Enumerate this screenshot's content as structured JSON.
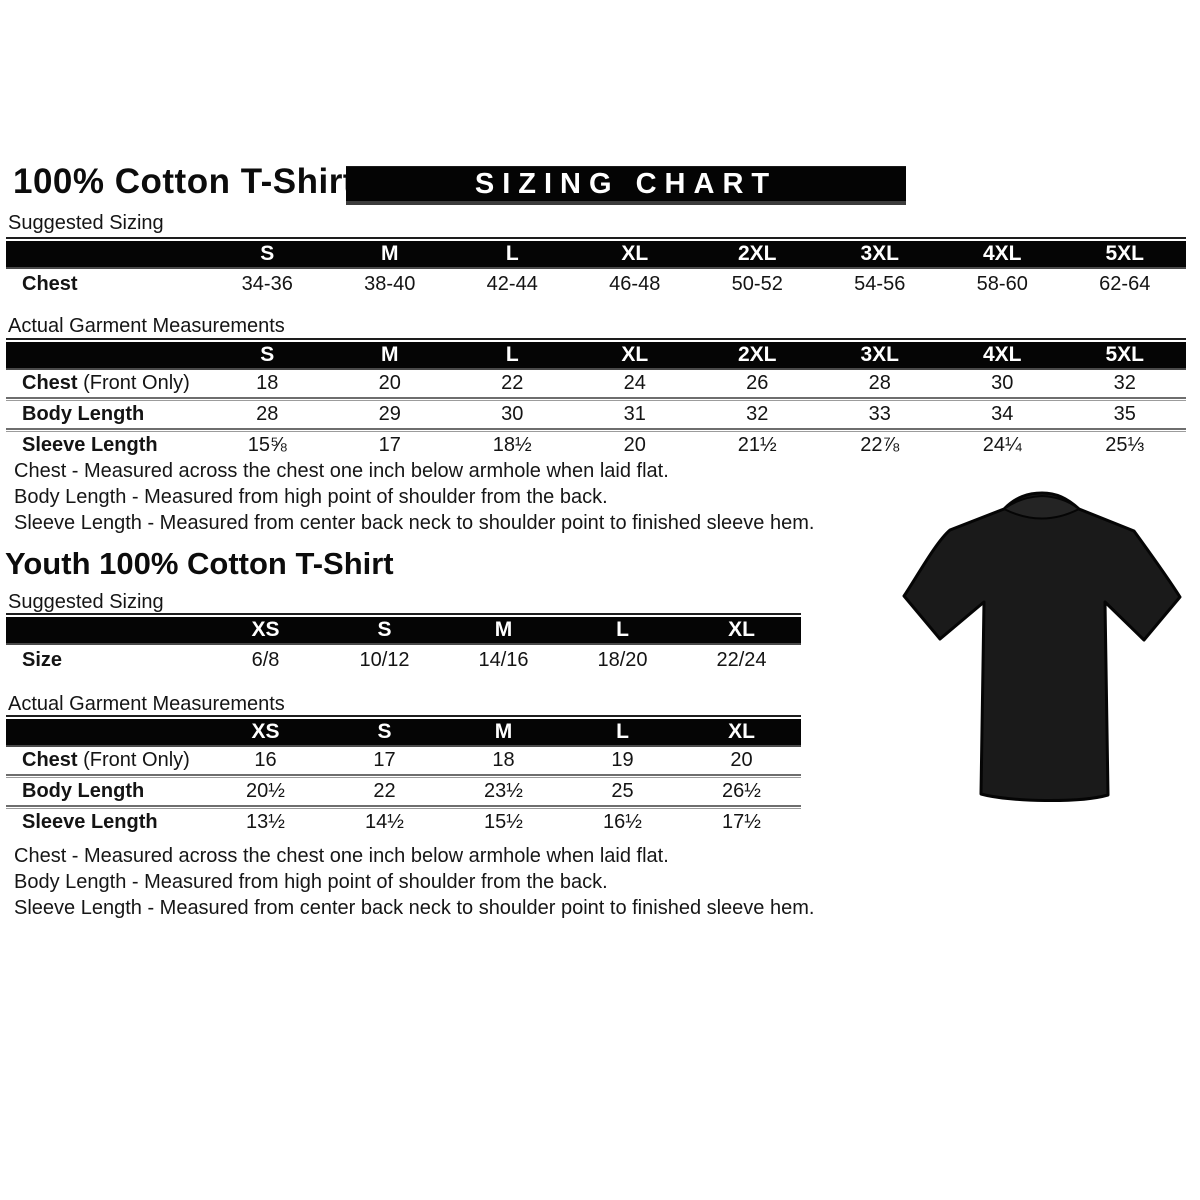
{
  "page": {
    "title": "100% Cotton T-Shirt",
    "banner": "SIZING CHART"
  },
  "adult": {
    "suggested_label": "Suggested Sizing",
    "suggested": {
      "columns": [
        "S",
        "M",
        "L",
        "XL",
        "2XL",
        "3XL",
        "4XL",
        "5XL"
      ],
      "rows": [
        {
          "label": "Chest",
          "values": [
            "34-36",
            "38-40",
            "42-44",
            "46-48",
            "50-52",
            "54-56",
            "58-60",
            "62-64"
          ]
        }
      ]
    },
    "actual_label": "Actual Garment Measurements",
    "actual": {
      "columns": [
        "S",
        "M",
        "L",
        "XL",
        "2XL",
        "3XL",
        "4XL",
        "5XL"
      ],
      "double_rules": true,
      "rows": [
        {
          "label": "Chest",
          "label_suffix": " (Front Only)",
          "values": [
            "18",
            "20",
            "22",
            "24",
            "26",
            "28",
            "30",
            "32"
          ]
        },
        {
          "label": "Body Length",
          "values": [
            "28",
            "29",
            "30",
            "31",
            "32",
            "33",
            "34",
            "35"
          ]
        },
        {
          "label": "Sleeve Length",
          "values": [
            "15⅝",
            "17",
            "18½",
            "20",
            "21½",
            "22⅞",
            "24¼",
            "25⅓"
          ]
        }
      ]
    },
    "notes": [
      "Chest - Measured across the chest one inch below armhole when laid flat.",
      "Body Length - Measured from high point of shoulder from the back.",
      "Sleeve Length - Measured from center back neck to shoulder point to finished sleeve hem."
    ]
  },
  "youth": {
    "title": "Youth 100% Cotton T-Shirt",
    "suggested_label": "Suggested Sizing",
    "suggested": {
      "columns": [
        "XS",
        "S",
        "M",
        "L",
        "XL"
      ],
      "rows": [
        {
          "label": "Size",
          "values": [
            "6/8",
            "10/12",
            "14/16",
            "18/20",
            "22/24"
          ]
        }
      ]
    },
    "actual_label": "Actual Garment Measurements",
    "actual": {
      "columns": [
        "XS",
        "S",
        "M",
        "L",
        "XL"
      ],
      "double_rules": true,
      "rows": [
        {
          "label": "Chest",
          "label_suffix": " (Front Only)",
          "values": [
            "16",
            "17",
            "18",
            "19",
            "20"
          ]
        },
        {
          "label": "Body Length",
          "values": [
            "20½",
            "22",
            "23½",
            "25",
            "26½"
          ]
        },
        {
          "label": "Sleeve Length",
          "values": [
            "13½",
            "14½",
            "15½",
            "16½",
            "17½"
          ]
        }
      ]
    },
    "notes": [
      "Chest - Measured across the chest one inch below armhole when laid flat.",
      "Body Length - Measured from high point of shoulder from the back.",
      "Sleeve Length - Measured from center back neck to shoulder point to finished sleeve hem."
    ]
  },
  "shirt": {
    "name": "black-tshirt-product-photo",
    "color": "#1a1a1a",
    "outline": "#050505",
    "collar": "#242424"
  },
  "colors": {
    "background": "#ffffff",
    "header_bar": "#050505",
    "header_text": "#ffffff",
    "body_text": "#141414",
    "rule_dark": "#6e6e6e",
    "rule_light": "#9c9c9c"
  }
}
